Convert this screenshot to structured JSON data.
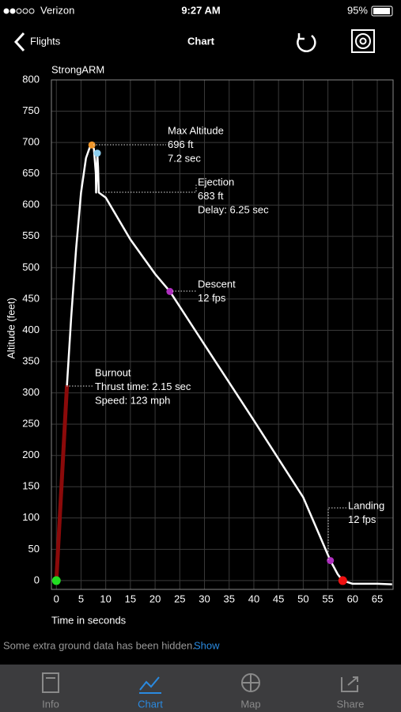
{
  "status_bar": {
    "carrier": "Verizon",
    "time": "9:27 AM",
    "battery": "95%"
  },
  "nav": {
    "back": "Flights",
    "title": "Chart"
  },
  "chart_data": {
    "type": "line",
    "title": "StrongARM",
    "xlabel": "Time in seconds",
    "ylabel": "Altitude (feet)",
    "xlim": [
      -1,
      68.2
    ],
    "ylim": [
      -14,
      800
    ],
    "xticks": [
      0,
      5,
      10,
      15,
      20,
      25,
      30,
      35,
      40,
      45,
      50,
      55,
      60,
      65
    ],
    "yticks": [
      0,
      50,
      100,
      150,
      200,
      250,
      300,
      350,
      400,
      450,
      500,
      550,
      600,
      650,
      700,
      750,
      800
    ],
    "grid": true,
    "series": [
      {
        "color": "#8b0a0a",
        "x": [
          0,
          2.15
        ],
        "values": [
          0,
          312
        ]
      },
      {
        "color": "#ffffff",
        "x": [
          2.15,
          3,
          4,
          5,
          6,
          6.8,
          7.2,
          7.6,
          8.0,
          8.05,
          8.3,
          8.45,
          8.6,
          10,
          15,
          20,
          23,
          30,
          40,
          50,
          55.5,
          57,
          58,
          60,
          65,
          68
        ],
        "values": [
          312,
          420,
          530,
          620,
          675,
          693,
          696,
          690,
          650,
          620,
          683,
          660,
          620,
          612,
          545,
          490,
          462,
          377,
          256,
          133,
          32,
          10,
          0,
          -5,
          -5,
          -6
        ]
      }
    ],
    "markers": [
      {
        "x": 0,
        "y": 0,
        "color": "#22dd22"
      },
      {
        "x": 7.2,
        "y": 696,
        "color": "#f0962a"
      },
      {
        "x": 8.3,
        "y": 683,
        "color": "#8fd0f0"
      },
      {
        "x": 23,
        "y": 462,
        "color": "#b030c0"
      },
      {
        "x": 55.5,
        "y": 32,
        "color": "#b030c0"
      },
      {
        "x": 58,
        "y": 0,
        "color": "#ee1111"
      }
    ],
    "annotations": [
      {
        "lines": [
          "Max Altitude",
          "696 ft",
          "7.2  sec"
        ]
      },
      {
        "lines": [
          "Ejection",
          "683 ft",
          "Delay:  6.25 sec"
        ]
      },
      {
        "lines": [
          "Descent",
          "12 fps"
        ]
      },
      {
        "lines": [
          "Burnout",
          "Thrust time: 2.15 sec",
          "Speed: 123 mph"
        ]
      },
      {
        "lines": [
          "Landing",
          "12 fps"
        ]
      }
    ]
  },
  "footer": {
    "note": "Some extra ground data has been hidden.",
    "link": "Show"
  },
  "tabs": [
    "Info",
    "Chart",
    "Map",
    "Share"
  ]
}
